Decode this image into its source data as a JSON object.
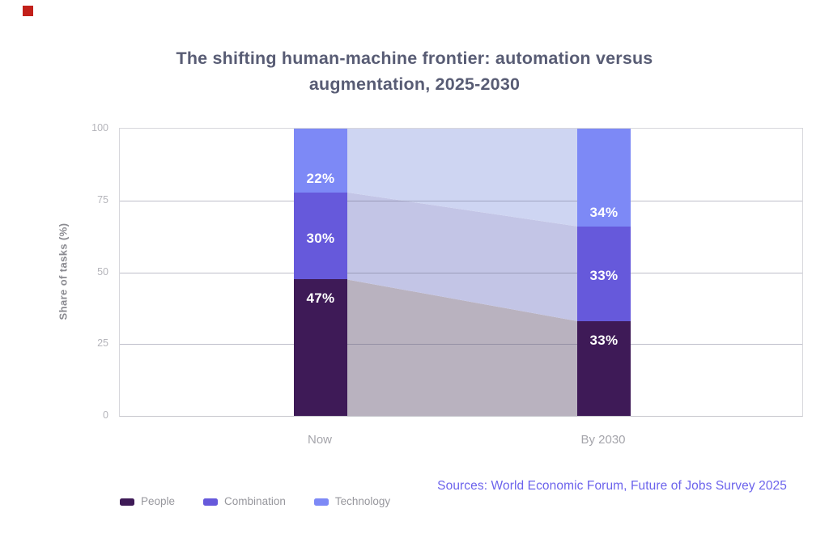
{
  "page": {
    "background": "#ffffff"
  },
  "marker": {
    "color": "#c2201a"
  },
  "title": {
    "line1": "The shifting human-machine frontier: automation versus",
    "line2": "augmentation, 2025-2030",
    "color": "#585c74"
  },
  "chart_data": {
    "type": "bar",
    "variant": "100-percent-stacked-with-slope-ribbons",
    "title": "The shifting human-machine frontier: automation versus augmentation, 2025-2030",
    "categories": [
      "Now",
      "By 2030"
    ],
    "series": [
      {
        "name": "People",
        "values": [
          47,
          33
        ],
        "color": "#3e1a57",
        "ribbon_color": "#b9b2bf"
      },
      {
        "name": "Combination",
        "values": [
          30,
          33
        ],
        "color": "#6659db",
        "ribbon_color": "#c3c5e6"
      },
      {
        "name": "Technology",
        "values": [
          22,
          34
        ],
        "color": "#7d89f6",
        "ribbon_color": "#ced5f2"
      }
    ],
    "segment_labels": [
      [
        "47%",
        "30%",
        "22%"
      ],
      [
        "33%",
        "33%",
        "34%"
      ]
    ],
    "ylabel": "Share of tasks (%)",
    "yticks": [
      0,
      25,
      50,
      75,
      100
    ],
    "ylim": [
      0,
      100
    ],
    "grid": true,
    "legend": [
      "People",
      "Combination",
      "Technology"
    ],
    "legend_position": "bottom-left"
  },
  "source": {
    "text": "Sources: World Economic Forum, Future of Jobs Survey 2025",
    "color": "#6c63ec"
  }
}
